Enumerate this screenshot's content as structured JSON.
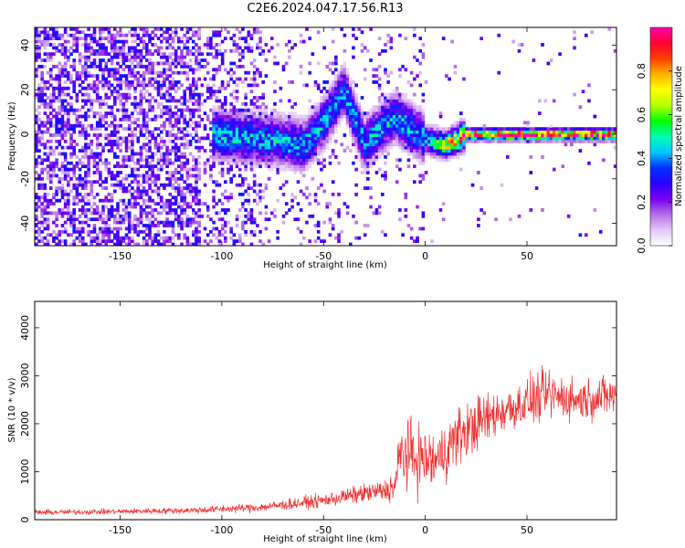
{
  "title": "C2E6.2024.047.17.56.R13",
  "chart_data": [
    {
      "type": "heatmap",
      "xlabel": "Height of straight line (km)",
      "ylabel": "Frequency (Hz)",
      "xlim": [
        -192,
        94
      ],
      "ylim": [
        -50,
        48
      ],
      "xticks": [
        -150,
        -100,
        -50,
        0,
        50
      ],
      "yticks": [
        -40,
        -20,
        0,
        20,
        40
      ],
      "colorbar": {
        "label": "Normalized spectral amplitude",
        "range": [
          0,
          1
        ],
        "ticks": [
          0.0,
          0.2,
          0.4,
          0.6,
          0.8
        ],
        "colormap": [
          "#ffffff",
          "#e3c7f5",
          "#b56ee8",
          "#7a00f0",
          "#2a00ff",
          "#0030ff",
          "#00c8ff",
          "#00ffb0",
          "#00ff00",
          "#b8ff00",
          "#ffff00",
          "#ffb000",
          "#ff4000",
          "#ff0030",
          "#ff00b0"
        ]
      },
      "ridge": [
        {
          "x": -105,
          "f": 0
        },
        {
          "x": -70,
          "f": -3
        },
        {
          "x": -60,
          "f": -5
        },
        {
          "x": -50,
          "f": 5
        },
        {
          "x": -40,
          "f": 20
        },
        {
          "x": -30,
          "f": -4
        },
        {
          "x": -15,
          "f": 8
        },
        {
          "x": 0,
          "f": -2
        },
        {
          "x": 10,
          "f": -5
        },
        {
          "x": 20,
          "f": 0
        },
        {
          "x": 40,
          "f": 0
        },
        {
          "x": 94,
          "f": 0
        }
      ],
      "grid": false
    },
    {
      "type": "line",
      "xlabel": "Height of straight line (km)",
      "ylabel": "SNR (10 * v/v)",
      "xlim": [
        -192,
        94
      ],
      "ylim": [
        0,
        4550
      ],
      "xticks": [
        -150,
        -100,
        -50,
        0,
        50
      ],
      "yticks": [
        0,
        1000,
        2000,
        3000,
        4000
      ],
      "series": [
        {
          "color": "#f03030",
          "envelope": [
            {
              "x": -192,
              "mean": 150,
              "spread": 120
            },
            {
              "x": -150,
              "mean": 170,
              "spread": 120
            },
            {
              "x": -110,
              "mean": 200,
              "spread": 150
            },
            {
              "x": -80,
              "mean": 260,
              "spread": 200
            },
            {
              "x": -50,
              "mean": 400,
              "spread": 300
            },
            {
              "x": -30,
              "mean": 550,
              "spread": 400
            },
            {
              "x": -20,
              "mean": 600,
              "spread": 500
            },
            {
              "x": -15,
              "mean": 700,
              "spread": 700
            },
            {
              "x": -12,
              "mean": 1400,
              "spread": 1500
            },
            {
              "x": -5,
              "mean": 1300,
              "spread": 1500
            },
            {
              "x": 5,
              "mean": 1200,
              "spread": 1300
            },
            {
              "x": 15,
              "mean": 1700,
              "spread": 1300
            },
            {
              "x": 25,
              "mean": 2000,
              "spread": 1200
            },
            {
              "x": 40,
              "mean": 2300,
              "spread": 1000
            },
            {
              "x": 60,
              "mean": 2600,
              "spread": 1100
            },
            {
              "x": 75,
              "mean": 2500,
              "spread": 900
            },
            {
              "x": 94,
              "mean": 2600,
              "spread": 900
            }
          ]
        }
      ],
      "grid": false
    }
  ]
}
